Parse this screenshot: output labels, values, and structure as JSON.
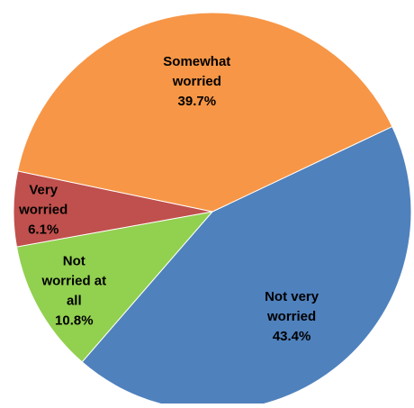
{
  "chart_data": {
    "type": "pie",
    "title": "",
    "slices": [
      {
        "label_lines": [
          "Not very",
          "worried",
          "43.4%"
        ],
        "category": "Not very worried",
        "value": 43.4,
        "color": "#4f81bd"
      },
      {
        "label_lines": [
          "Not",
          "worried at",
          "all",
          "10.8%"
        ],
        "category": "Not worried at all",
        "value": 10.8,
        "color": "#92d050"
      },
      {
        "label_lines": [
          "Very",
          "worried",
          "6.1%"
        ],
        "category": "Very worried",
        "value": 6.1,
        "color": "#c0504d"
      },
      {
        "label_lines": [
          "Somewhat",
          "worried",
          "39.7%"
        ],
        "category": "Somewhat worried",
        "value": 39.7,
        "color": "#f79646"
      }
    ],
    "legend": "none",
    "data_labels": "inside"
  }
}
